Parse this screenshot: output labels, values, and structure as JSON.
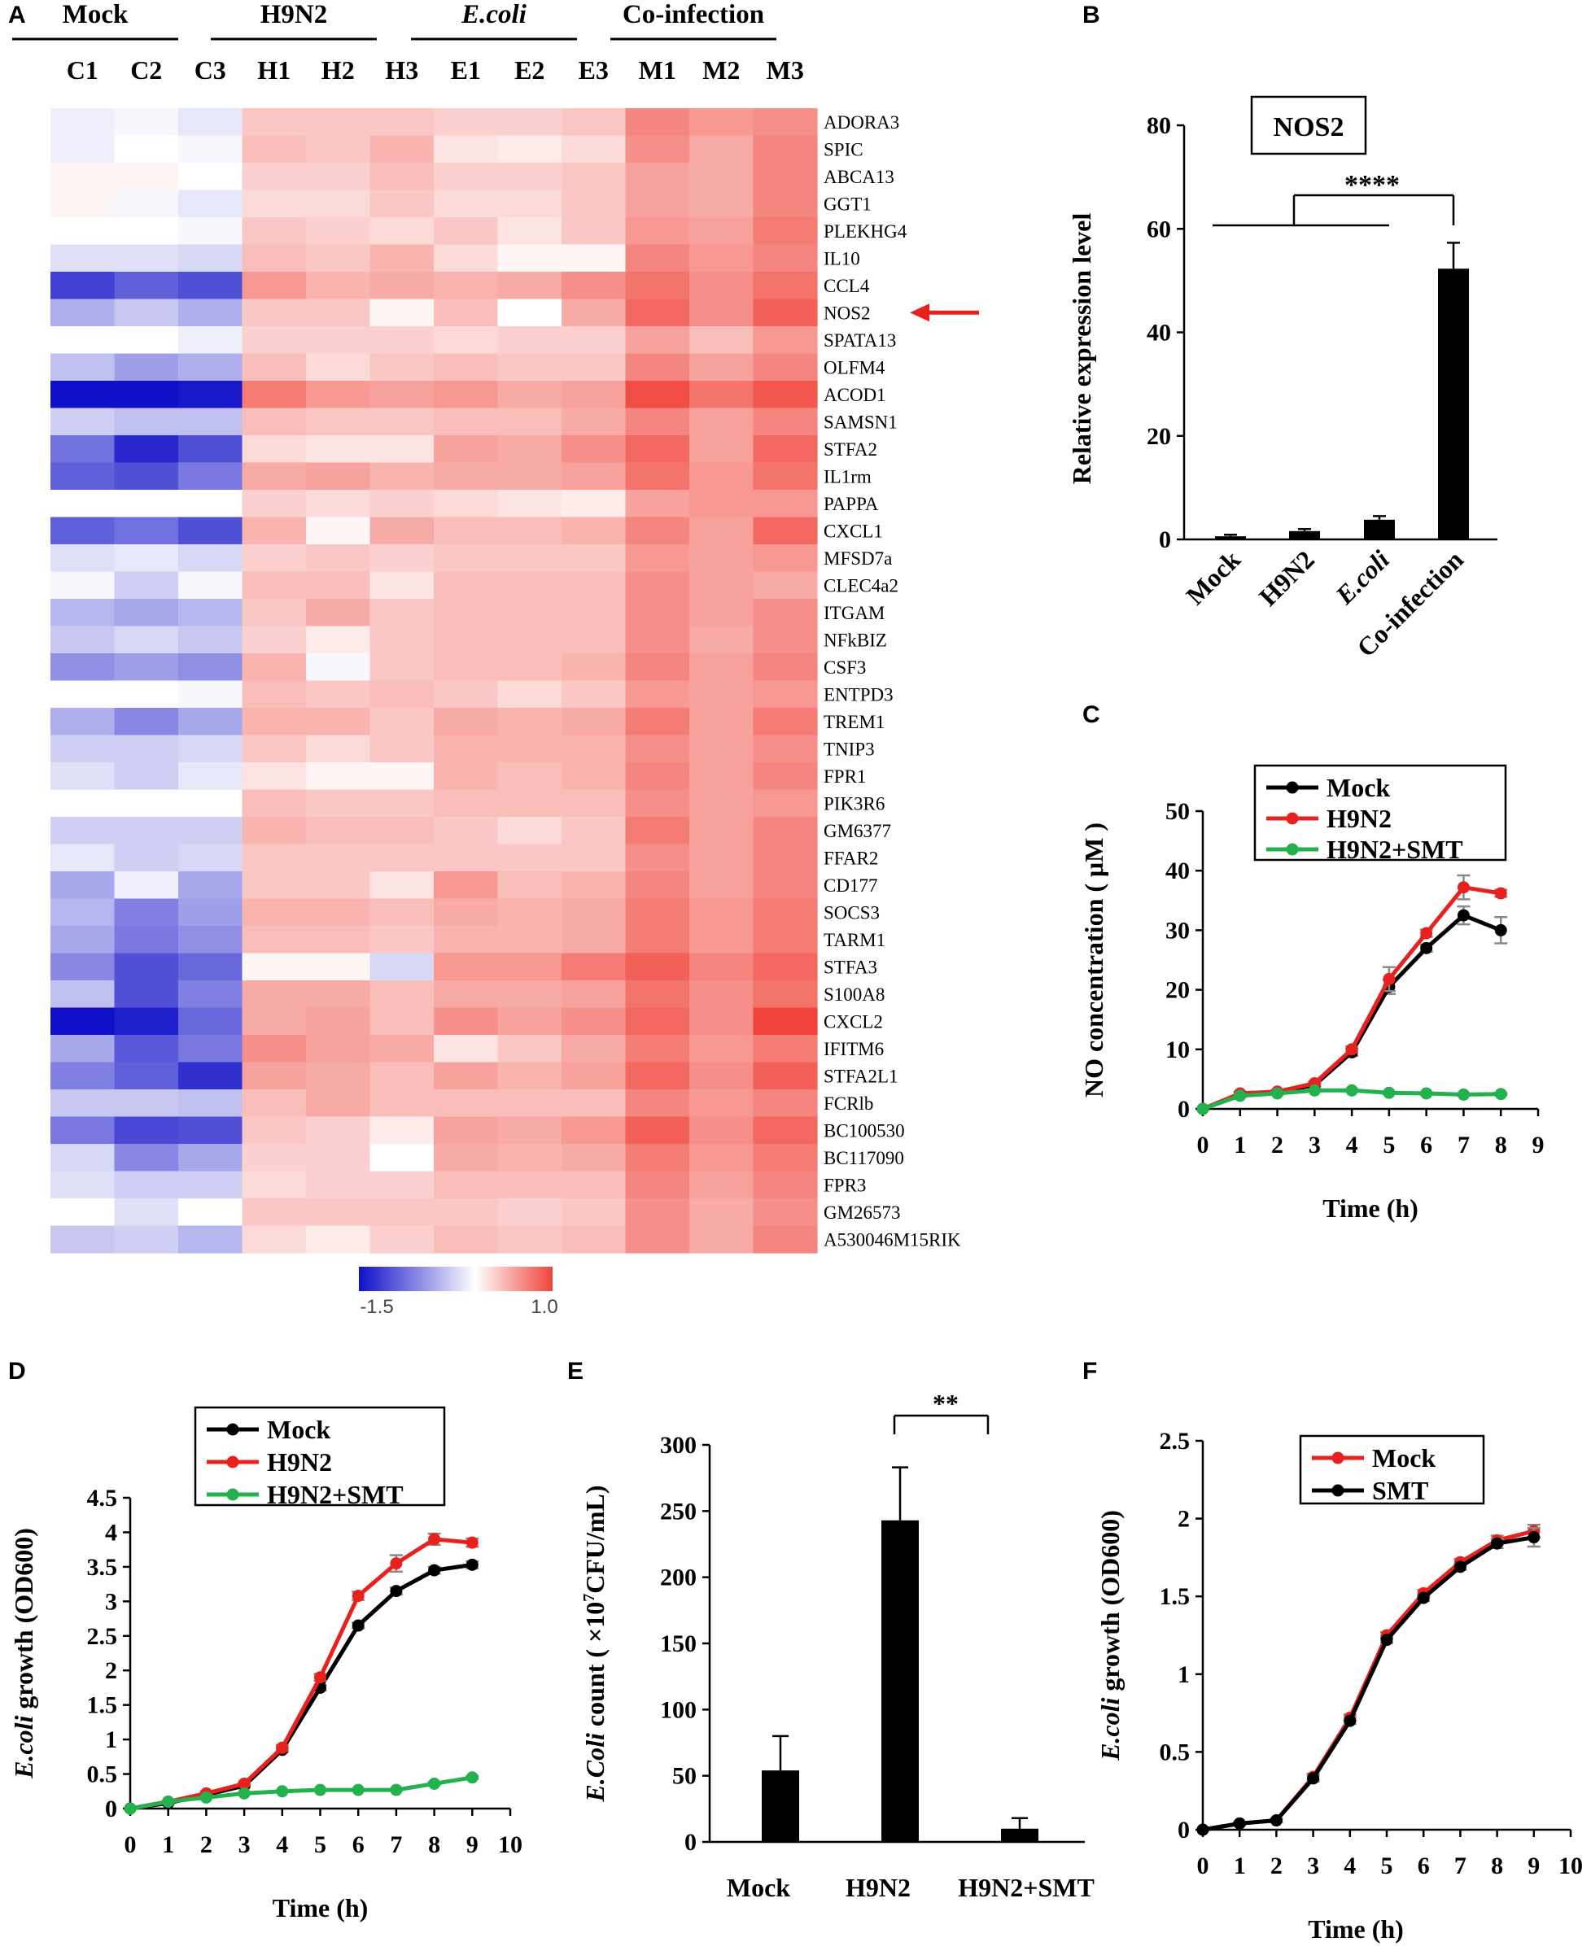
{
  "panels": {
    "A": "A",
    "B": "B",
    "C": "C",
    "D": "D",
    "E": "E",
    "F": "F"
  },
  "chart_data": [
    {
      "panel": "A",
      "type": "heatmap",
      "title": "",
      "groups": [
        {
          "name": "Mock",
          "samples": [
            "C1",
            "C2",
            "C3"
          ]
        },
        {
          "name": "H9N2",
          "samples": [
            "H1",
            "H2",
            "H3"
          ]
        },
        {
          "name": "E.coli",
          "samples": [
            "E1",
            "E2",
            "E3"
          ]
        },
        {
          "name": "Co-infection",
          "samples": [
            "M1",
            "M2",
            "M3"
          ]
        }
      ],
      "columns": [
        "C1",
        "C2",
        "C3",
        "H1",
        "H2",
        "H3",
        "E1",
        "E2",
        "E3",
        "M1",
        "M2",
        "M3"
      ],
      "rows": [
        "ADORA3",
        "SPIC",
        "ABCA13",
        "GGT1",
        "PLEKHG4",
        "IL10",
        "CCL4",
        "NOS2",
        "SPATA13",
        "OLFM4",
        "ACOD1",
        "SAMSN1",
        "STFA2",
        "IL1rm",
        "PAPPA",
        "CXCL1",
        "MFSD7a",
        "CLEC4a2",
        "ITGAM",
        "NFkBIZ",
        "CSF3",
        "ENTPD3",
        "TREM1",
        "TNIP3",
        "FPR1",
        "PIK3R6",
        "GM6377",
        "FFAR2",
        "CD177",
        "SOCS3",
        "TARM1",
        "STFA3",
        "S100A8",
        "CXCL2",
        "IFITM6",
        "STFA2L1",
        "FCRlb",
        "BC100530",
        "BC117090",
        "FPR3",
        "GM26573",
        "A530046M15RIK"
      ],
      "values": [
        [
          -0.1,
          -0.05,
          -0.15,
          0.3,
          0.3,
          0.3,
          0.25,
          0.25,
          0.3,
          0.65,
          0.55,
          0.6
        ],
        [
          -0.1,
          0.0,
          -0.05,
          0.35,
          0.3,
          0.4,
          0.15,
          0.1,
          0.2,
          0.6,
          0.45,
          0.65
        ],
        [
          0.05,
          0.05,
          0.0,
          0.25,
          0.25,
          0.35,
          0.25,
          0.25,
          0.3,
          0.5,
          0.45,
          0.65
        ],
        [
          0.05,
          -0.05,
          -0.15,
          0.2,
          0.2,
          0.3,
          0.2,
          0.2,
          0.3,
          0.5,
          0.45,
          0.65
        ],
        [
          0.0,
          0.0,
          -0.05,
          0.3,
          0.25,
          0.2,
          0.3,
          0.15,
          0.3,
          0.55,
          0.5,
          0.7
        ],
        [
          -0.2,
          -0.2,
          -0.25,
          0.35,
          0.3,
          0.4,
          0.2,
          0.05,
          0.05,
          0.65,
          0.55,
          0.65
        ],
        [
          -1.2,
          -1.0,
          -1.1,
          0.55,
          0.4,
          0.45,
          0.4,
          0.45,
          0.6,
          0.75,
          0.6,
          0.75
        ],
        [
          -0.5,
          -0.35,
          -0.5,
          0.3,
          0.3,
          0.05,
          0.35,
          0.0,
          0.45,
          0.8,
          0.6,
          0.85
        ],
        [
          0.0,
          0.0,
          -0.1,
          0.25,
          0.25,
          0.25,
          0.2,
          0.25,
          0.25,
          0.5,
          0.35,
          0.55
        ],
        [
          -0.4,
          -0.6,
          -0.5,
          0.35,
          0.2,
          0.3,
          0.35,
          0.3,
          0.3,
          0.65,
          0.5,
          0.65
        ],
        [
          -1.5,
          -1.5,
          -1.45,
          0.7,
          0.55,
          0.5,
          0.55,
          0.45,
          0.5,
          0.95,
          0.75,
          0.9
        ],
        [
          -0.3,
          -0.4,
          -0.4,
          0.35,
          0.3,
          0.3,
          0.35,
          0.35,
          0.45,
          0.65,
          0.5,
          0.65
        ],
        [
          -0.9,
          -1.35,
          -1.1,
          0.2,
          0.15,
          0.15,
          0.5,
          0.45,
          0.6,
          0.8,
          0.5,
          0.8
        ],
        [
          -1.0,
          -1.1,
          -0.85,
          0.45,
          0.5,
          0.4,
          0.45,
          0.45,
          0.5,
          0.75,
          0.55,
          0.75
        ],
        [
          0.0,
          0.0,
          0.0,
          0.25,
          0.2,
          0.25,
          0.2,
          0.15,
          0.1,
          0.5,
          0.55,
          0.55
        ],
        [
          -1.0,
          -0.9,
          -1.1,
          0.4,
          0.05,
          0.45,
          0.35,
          0.35,
          0.4,
          0.65,
          0.5,
          0.8
        ],
        [
          -0.2,
          -0.15,
          -0.25,
          0.25,
          0.3,
          0.25,
          0.3,
          0.3,
          0.3,
          0.55,
          0.5,
          0.55
        ],
        [
          -0.05,
          -0.3,
          -0.05,
          0.35,
          0.35,
          0.15,
          0.35,
          0.35,
          0.35,
          0.6,
          0.5,
          0.45
        ],
        [
          -0.45,
          -0.55,
          -0.45,
          0.3,
          0.45,
          0.3,
          0.35,
          0.35,
          0.35,
          0.6,
          0.5,
          0.6
        ],
        [
          -0.35,
          -0.25,
          -0.35,
          0.25,
          0.1,
          0.3,
          0.35,
          0.35,
          0.35,
          0.6,
          0.45,
          0.6
        ],
        [
          -0.7,
          -0.6,
          -0.7,
          0.4,
          -0.05,
          0.3,
          0.35,
          0.35,
          0.4,
          0.65,
          0.5,
          0.65
        ],
        [
          0.0,
          0.0,
          -0.05,
          0.35,
          0.3,
          0.35,
          0.3,
          0.2,
          0.3,
          0.55,
          0.5,
          0.55
        ],
        [
          -0.5,
          -0.75,
          -0.55,
          0.4,
          0.4,
          0.3,
          0.45,
          0.4,
          0.45,
          0.7,
          0.5,
          0.7
        ],
        [
          -0.3,
          -0.3,
          -0.25,
          0.3,
          0.2,
          0.3,
          0.4,
          0.4,
          0.4,
          0.6,
          0.5,
          0.6
        ],
        [
          -0.2,
          -0.3,
          -0.15,
          0.15,
          0.05,
          0.05,
          0.4,
          0.35,
          0.4,
          0.65,
          0.5,
          0.65
        ],
        [
          0.0,
          0.0,
          0.0,
          0.35,
          0.3,
          0.3,
          0.35,
          0.35,
          0.35,
          0.6,
          0.5,
          0.55
        ],
        [
          -0.3,
          -0.3,
          -0.3,
          0.4,
          0.35,
          0.35,
          0.3,
          0.2,
          0.3,
          0.7,
          0.5,
          0.65
        ],
        [
          -0.15,
          -0.3,
          -0.25,
          0.3,
          0.3,
          0.3,
          0.3,
          0.3,
          0.3,
          0.6,
          0.5,
          0.65
        ],
        [
          -0.55,
          -0.1,
          -0.55,
          0.3,
          0.3,
          0.15,
          0.55,
          0.35,
          0.4,
          0.65,
          0.5,
          0.65
        ],
        [
          -0.45,
          -0.8,
          -0.6,
          0.4,
          0.4,
          0.35,
          0.45,
          0.4,
          0.45,
          0.7,
          0.55,
          0.7
        ],
        [
          -0.55,
          -0.85,
          -0.7,
          0.35,
          0.35,
          0.3,
          0.4,
          0.4,
          0.45,
          0.7,
          0.55,
          0.7
        ],
        [
          -0.75,
          -1.1,
          -0.95,
          0.05,
          0.05,
          -0.25,
          0.55,
          0.55,
          0.7,
          0.85,
          0.65,
          0.8
        ],
        [
          -0.4,
          -1.1,
          -0.8,
          0.45,
          0.45,
          0.35,
          0.45,
          0.45,
          0.5,
          0.75,
          0.6,
          0.75
        ],
        [
          -1.5,
          -1.4,
          -0.95,
          0.45,
          0.5,
          0.35,
          0.6,
          0.5,
          0.6,
          0.8,
          0.6,
          1.0
        ],
        [
          -0.55,
          -1.05,
          -0.85,
          0.6,
          0.5,
          0.45,
          0.15,
          0.3,
          0.45,
          0.7,
          0.55,
          0.7
        ],
        [
          -0.8,
          -1.0,
          -1.3,
          0.5,
          0.45,
          0.35,
          0.5,
          0.4,
          0.5,
          0.8,
          0.6,
          0.85
        ],
        [
          -0.35,
          -0.35,
          -0.4,
          0.35,
          0.45,
          0.35,
          0.35,
          0.35,
          0.35,
          0.65,
          0.55,
          0.65
        ],
        [
          -0.85,
          -1.15,
          -1.1,
          0.3,
          0.25,
          0.1,
          0.5,
          0.45,
          0.55,
          0.85,
          0.6,
          0.8
        ],
        [
          -0.25,
          -0.75,
          -0.55,
          0.25,
          0.25,
          0.0,
          0.45,
          0.4,
          0.45,
          0.7,
          0.55,
          0.7
        ],
        [
          -0.2,
          -0.3,
          -0.3,
          0.2,
          0.25,
          0.25,
          0.35,
          0.35,
          0.35,
          0.65,
          0.5,
          0.65
        ],
        [
          0.0,
          -0.2,
          0.0,
          0.3,
          0.3,
          0.3,
          0.3,
          0.25,
          0.3,
          0.6,
          0.45,
          0.6
        ],
        [
          -0.35,
          -0.3,
          -0.45,
          0.2,
          0.1,
          0.25,
          0.35,
          0.3,
          0.35,
          0.6,
          0.45,
          0.65
        ]
      ],
      "scale": {
        "min": -1.5,
        "max": 1.0,
        "min_label": "-1.5",
        "max_label": "1.0",
        "low_color": "#1010c8",
        "mid_color": "#ffffff",
        "high_color": "#f0443a"
      },
      "highlight_row": "NOS2",
      "arrow_color": "#e8211f"
    },
    {
      "panel": "B",
      "type": "bar",
      "title": "NOS2",
      "categories": [
        "Mock",
        "H9N2",
        "E.coli",
        "Co-infection"
      ],
      "values": [
        0.6,
        1.6,
        3.8,
        52.3
      ],
      "errors": [
        0.3,
        0.4,
        0.7,
        5.0
      ],
      "ylabel": "Relative expression level",
      "ylim": [
        0,
        80
      ],
      "yticks": [
        "0",
        "20",
        "40",
        "60",
        "80"
      ],
      "significance": "****"
    },
    {
      "panel": "C",
      "type": "line",
      "x": [
        0,
        1,
        2,
        3,
        4,
        5,
        6,
        7,
        8
      ],
      "xticks": [
        "0",
        "1",
        "2",
        "3",
        "4",
        "5",
        "6",
        "7",
        "8",
        "9"
      ],
      "xlim": [
        0,
        9
      ],
      "ylim": [
        0,
        50
      ],
      "yticks": [
        "0",
        "10",
        "20",
        "30",
        "40",
        "50"
      ],
      "xlabel": "Time (h)",
      "ylabel": "NO concentration ( μM )",
      "legend": "top",
      "series": [
        {
          "name": "Mock",
          "color": "#000000",
          "values": [
            0,
            2.5,
            2.8,
            4.0,
            9.5,
            20.5,
            27.0,
            32.5,
            30.0
          ],
          "errors": [
            0,
            0.3,
            0.3,
            0.3,
            0.6,
            1.2,
            0.6,
            1.5,
            2.2
          ]
        },
        {
          "name": "H9N2",
          "color": "#e8211f",
          "values": [
            0,
            2.6,
            2.9,
            4.3,
            10.0,
            21.8,
            29.5,
            37.2,
            36.2
          ],
          "errors": [
            0,
            0.3,
            0.3,
            0.3,
            0.5,
            2.0,
            0.6,
            2.0,
            0.6
          ]
        },
        {
          "name": "H9N2+SMT",
          "color": "#22b14c",
          "values": [
            0,
            2.2,
            2.6,
            3.1,
            3.1,
            2.7,
            2.6,
            2.4,
            2.5
          ],
          "errors": [
            0,
            0.2,
            0.2,
            0.2,
            0.2,
            0.2,
            0.2,
            0.2,
            0.2
          ]
        }
      ]
    },
    {
      "panel": "D",
      "type": "line",
      "x": [
        0,
        1,
        2,
        3,
        4,
        5,
        6,
        7,
        8,
        9
      ],
      "xticks": [
        "0",
        "1",
        "2",
        "3",
        "4",
        "5",
        "6",
        "7",
        "8",
        "9",
        "10"
      ],
      "xlim": [
        0,
        10
      ],
      "ylim": [
        0,
        4.5
      ],
      "yticks": [
        "0",
        "0.5",
        "1",
        "1.5",
        "2",
        "2.5",
        "3",
        "3.5",
        "4",
        "4.5"
      ],
      "xlabel": "Time (h)",
      "ylabel_italic": "E.coli",
      "ylabel_rest": " growth (OD600)",
      "legend": "top-left",
      "series": [
        {
          "name": "Mock",
          "color": "#000000",
          "values": [
            0,
            0.08,
            0.2,
            0.33,
            0.85,
            1.75,
            2.65,
            3.15,
            3.45,
            3.53
          ],
          "errors": [
            0,
            0.01,
            0.02,
            0.02,
            0.03,
            0.04,
            0.04,
            0.05,
            0.05,
            0.05
          ]
        },
        {
          "name": "H9N2",
          "color": "#e8211f",
          "values": [
            0,
            0.1,
            0.22,
            0.36,
            0.88,
            1.9,
            3.08,
            3.55,
            3.9,
            3.85
          ],
          "errors": [
            0,
            0.01,
            0.02,
            0.02,
            0.04,
            0.05,
            0.06,
            0.12,
            0.08,
            0.06
          ]
        },
        {
          "name": "H9N2+SMT",
          "color": "#22b14c",
          "values": [
            0,
            0.1,
            0.16,
            0.22,
            0.25,
            0.27,
            0.27,
            0.27,
            0.36,
            0.45
          ],
          "errors": [
            0,
            0.01,
            0.01,
            0.01,
            0.01,
            0.01,
            0.01,
            0.01,
            0.02,
            0.02
          ]
        }
      ]
    },
    {
      "panel": "E",
      "type": "bar",
      "categories": [
        "Mock",
        "H9N2",
        "H9N2+SMT"
      ],
      "values": [
        54,
        243,
        10
      ],
      "errors": [
        26,
        40,
        8
      ],
      "ylabel_italic": "E.Coli",
      "ylabel_rest": " count ( ×10",
      "ylabel_sup": "7",
      "ylabel_end": "CFU/mL)",
      "ylim": [
        0,
        300
      ],
      "yticks": [
        "0",
        "50",
        "100",
        "150",
        "200",
        "250",
        "300"
      ],
      "significance": "**"
    },
    {
      "panel": "F",
      "type": "line",
      "x": [
        0,
        1,
        2,
        3,
        4,
        5,
        6,
        7,
        8,
        9
      ],
      "xticks": [
        "0",
        "1",
        "2",
        "3",
        "4",
        "5",
        "6",
        "7",
        "8",
        "9",
        "10"
      ],
      "xlim": [
        0,
        10
      ],
      "ylim": [
        0,
        2.5
      ],
      "yticks": [
        "0",
        "0.5",
        "1",
        "1.5",
        "2",
        "2.5"
      ],
      "xlabel": "Time (h)",
      "ylabel_italic": "E.coli",
      "ylabel_rest": " growth (OD600)",
      "legend": "top-right",
      "series": [
        {
          "name": "Mock",
          "color": "#e8211f",
          "values": [
            0,
            0.04,
            0.06,
            0.34,
            0.72,
            1.25,
            1.52,
            1.72,
            1.86,
            1.92
          ],
          "errors": [
            0,
            0.01,
            0.01,
            0.02,
            0.02,
            0.02,
            0.02,
            0.02,
            0.03,
            0.04
          ]
        },
        {
          "name": "SMT",
          "color": "#000000",
          "values": [
            0,
            0.04,
            0.06,
            0.33,
            0.7,
            1.22,
            1.49,
            1.69,
            1.84,
            1.88
          ],
          "errors": [
            0,
            0.01,
            0.01,
            0.02,
            0.02,
            0.02,
            0.02,
            0.02,
            0.03,
            0.06
          ]
        }
      ]
    }
  ]
}
